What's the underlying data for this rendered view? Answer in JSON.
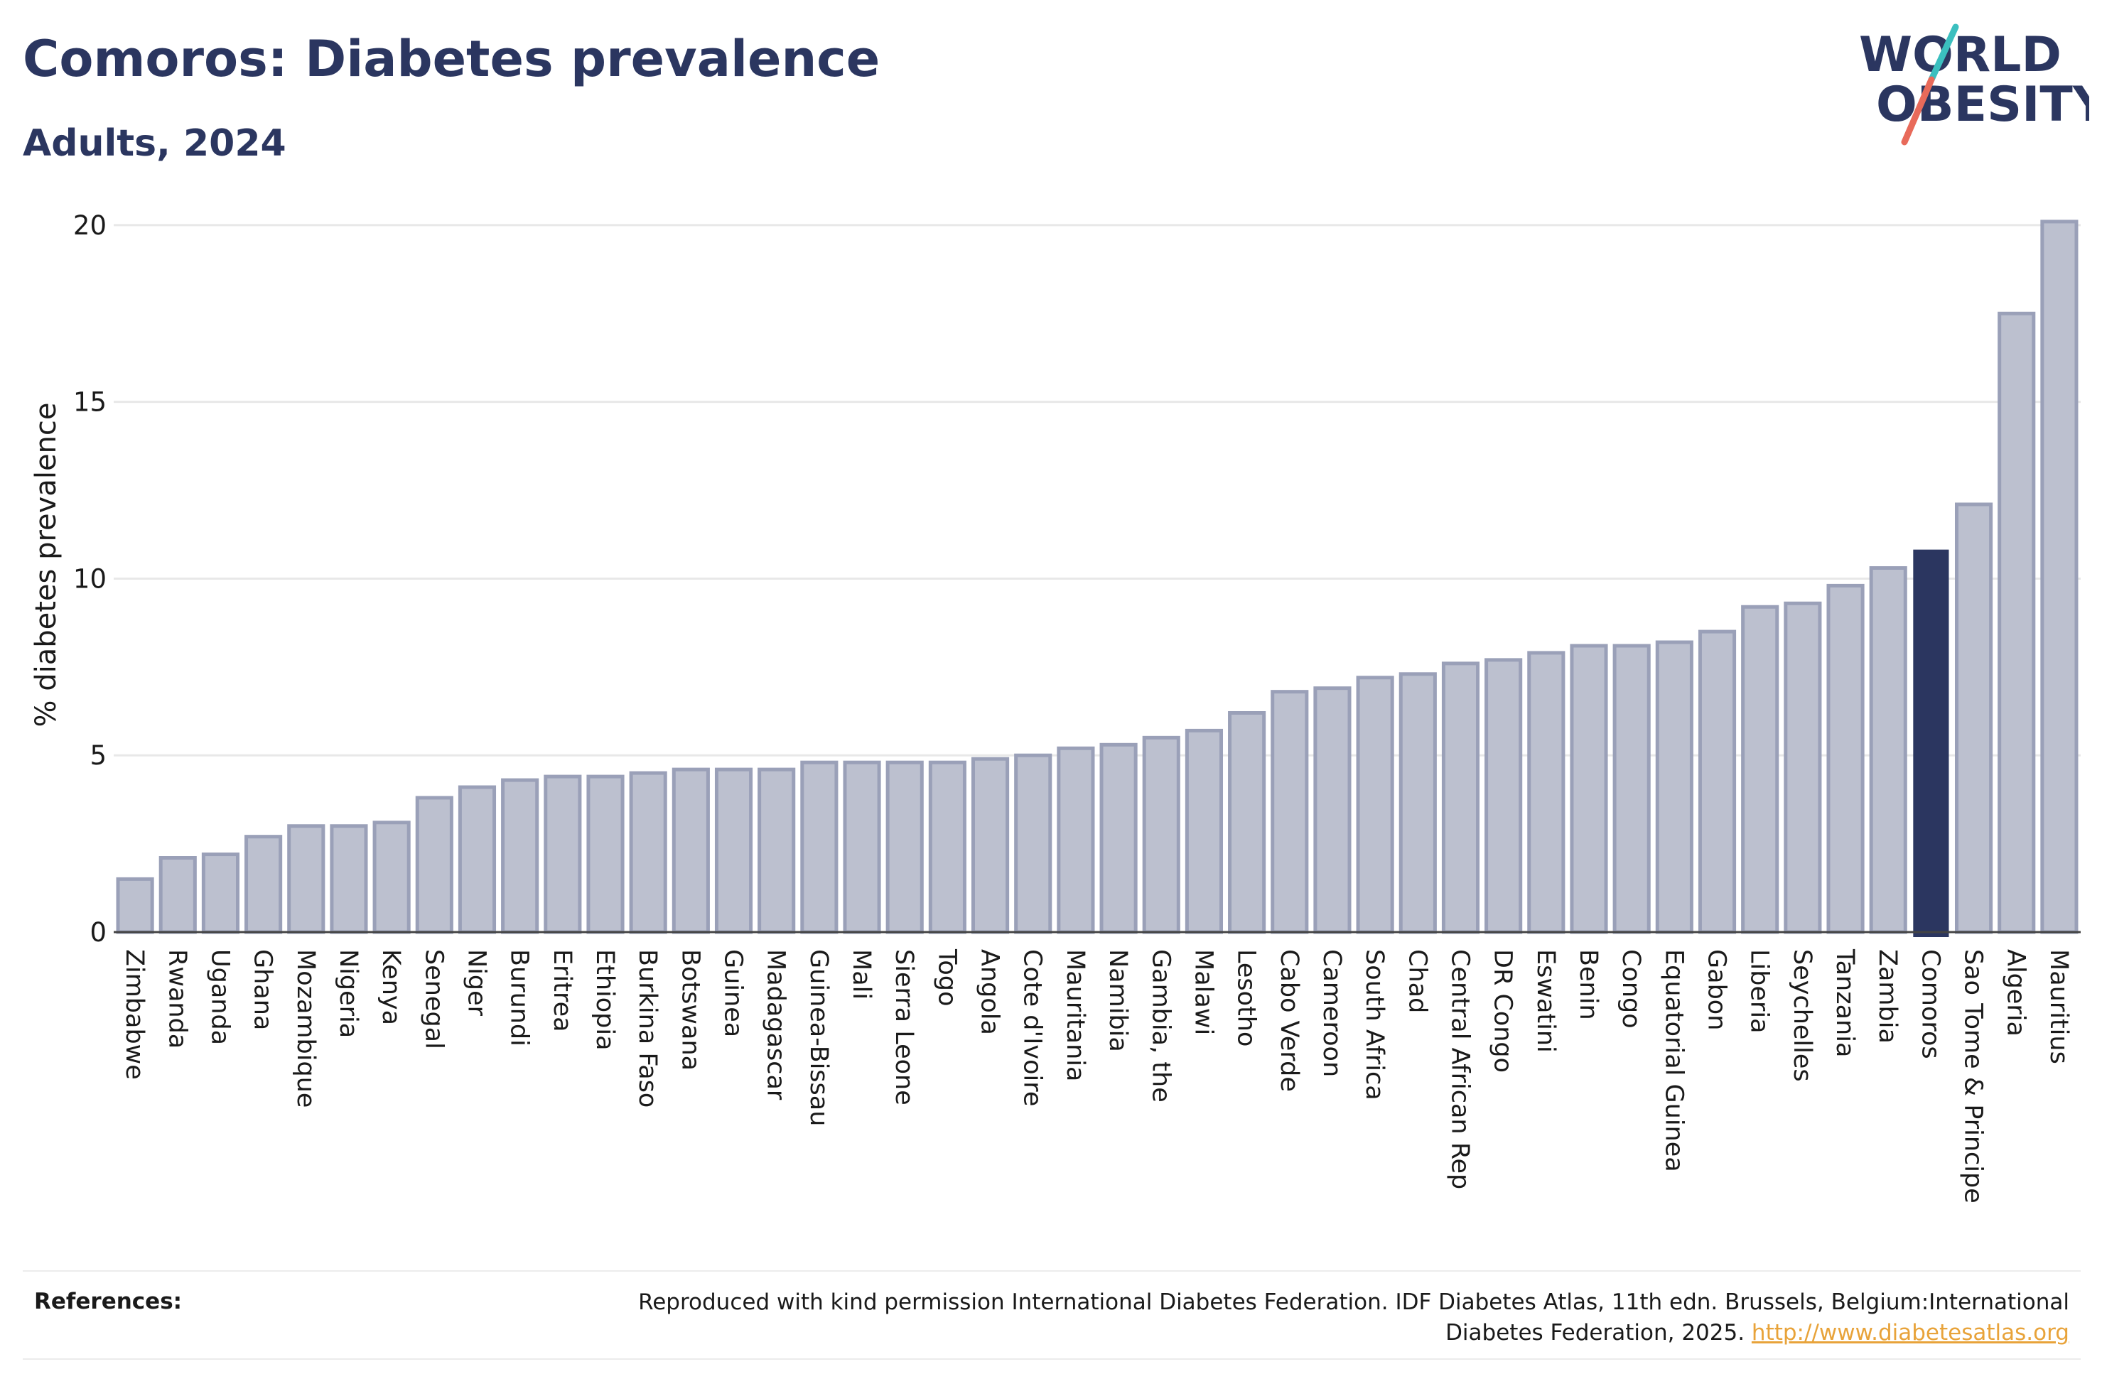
{
  "header": {
    "title": "Comoros: Diabetes prevalence",
    "subtitle": "Adults, 2024"
  },
  "logo": {
    "line1": "WORLD",
    "line2": "OBESITY"
  },
  "colors": {
    "highlight": "#2b3660",
    "bar_fill": "#bcc0cf",
    "bar_stroke": "#9aa0b8",
    "grid": "#e8e8e8",
    "logo_text": "#2b3660",
    "logo_slash_top": "#3bbfbf",
    "logo_slash_bottom": "#e86a5a"
  },
  "chart_data": {
    "type": "bar",
    "title": "Comoros: Diabetes prevalence",
    "subtitle": "Adults, 2024",
    "xlabel": "",
    "ylabel": "% diabetes prevalence",
    "ylim": [
      0,
      20.5
    ],
    "yticks": [
      0,
      5,
      10,
      15,
      20
    ],
    "grid": true,
    "highlight_category": "Comoros",
    "categories": [
      "Zimbabwe",
      "Rwanda",
      "Uganda",
      "Ghana",
      "Mozambique",
      "Nigeria",
      "Kenya",
      "Senegal",
      "Niger",
      "Burundi",
      "Eritrea",
      "Ethiopia",
      "Burkina Faso",
      "Botswana",
      "Guinea",
      "Madagascar",
      "Guinea-Bissau",
      "Mali",
      "Sierra Leone",
      "Togo",
      "Angola",
      "Cote d'Ivoire",
      "Mauritania",
      "Namibia",
      "Gambia, the",
      "Malawi",
      "Lesotho",
      "Cabo Verde",
      "Cameroon",
      "South Africa",
      "Chad",
      "Central African Rep",
      "DR Congo",
      "Eswatini",
      "Benin",
      "Congo",
      "Equatorial Guinea",
      "Gabon",
      "Liberia",
      "Seychelles",
      "Tanzania",
      "Zambia",
      "Comoros",
      "Sao Tome & Principe",
      "Algeria",
      "Mauritius"
    ],
    "values": [
      1.5,
      2.1,
      2.2,
      2.7,
      3.0,
      3.0,
      3.1,
      3.8,
      4.1,
      4.3,
      4.4,
      4.4,
      4.5,
      4.6,
      4.6,
      4.6,
      4.8,
      4.8,
      4.8,
      4.8,
      4.9,
      5.0,
      5.2,
      5.3,
      5.5,
      5.7,
      6.2,
      6.8,
      6.9,
      7.2,
      7.3,
      7.6,
      7.7,
      7.9,
      8.1,
      8.1,
      8.2,
      8.5,
      9.2,
      9.3,
      9.8,
      10.3,
      10.8,
      12.1,
      17.5,
      20.1
    ]
  },
  "references": {
    "label": "References:",
    "text": "Reproduced with kind permission International Diabetes Federation. IDF Diabetes Atlas, 11th edn. Brussels, Belgium:International Diabetes Federation, 2025.",
    "link": "http://www.diabetesatlas.org"
  }
}
